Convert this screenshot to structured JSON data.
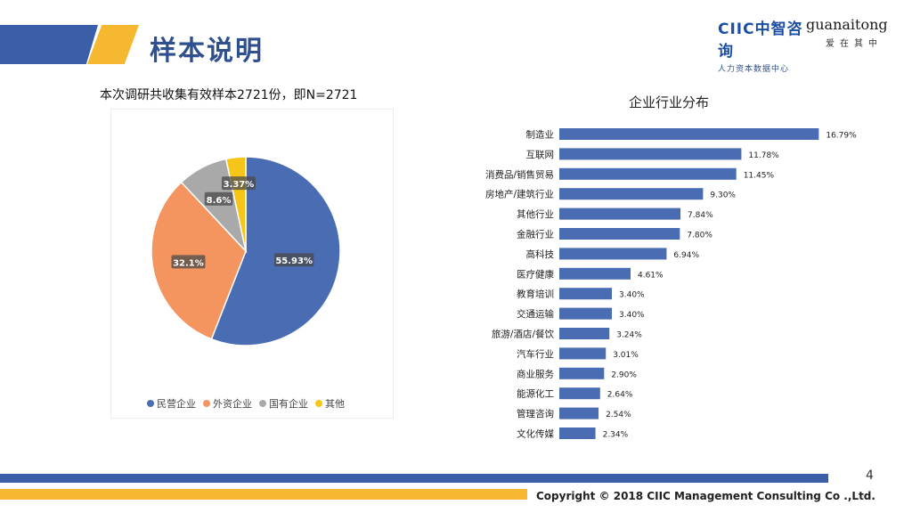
{
  "header": {
    "title": "样本说明",
    "logo_ciic": "CIIC中智咨询",
    "logo_ciic_sub": "人力资本数据中心",
    "logo_guanaitong": "guanaitong",
    "logo_guanaitong_sub": "爱在其中"
  },
  "subtitle": "本次调研共收集有效样本2721份，即N=2721",
  "colors": {
    "brand_blue": "#3a5ea8",
    "brand_yellow": "#f6b830",
    "pie_private": "#4a6cb3",
    "pie_foreign": "#f4955f",
    "pie_state": "#a9a9a9",
    "pie_other": "#f5c518",
    "bar": "#4a6cb3"
  },
  "chart_data": [
    {
      "type": "pie",
      "title": "",
      "slices": [
        {
          "label": "民营企业",
          "value": 55.93,
          "display": "55.93%"
        },
        {
          "label": "外资企业",
          "value": 32.1,
          "display": "32.1%"
        },
        {
          "label": "国有企业",
          "value": 8.6,
          "display": "8.6%"
        },
        {
          "label": "其他",
          "value": 3.37,
          "display": "3.37%"
        }
      ],
      "legend_position": "bottom"
    },
    {
      "type": "bar",
      "orientation": "horizontal",
      "title": "企业行业分布",
      "categories": [
        "制造业",
        "互联网",
        "消费品/销售贸易",
        "房地产/建筑行业",
        "其他行业",
        "金融行业",
        "高科技",
        "医疗健康",
        "教育培训",
        "交通运输",
        "旅游/酒店/餐饮",
        "汽车行业",
        "商业服务",
        "能源化工",
        "管理咨询",
        "文化传媒"
      ],
      "values": [
        16.79,
        11.78,
        11.45,
        9.3,
        7.84,
        7.8,
        6.94,
        4.61,
        3.4,
        3.4,
        3.24,
        3.01,
        2.9,
        2.64,
        2.54,
        2.34
      ],
      "labels": [
        "16.79%",
        "11.78%",
        "11.45%",
        "9.30%",
        "7.84%",
        "7.80%",
        "6.94%",
        "4.61%",
        "3.40%",
        "3.40%",
        "3.24%",
        "3.01%",
        "2.90%",
        "2.64%",
        "2.54%",
        "2.34%"
      ],
      "xlim": [
        0,
        17
      ]
    }
  ],
  "footer": {
    "page_number": "4",
    "copyright": "Copyright © 2018 CIIC Management Consulting Co .,Ltd."
  }
}
